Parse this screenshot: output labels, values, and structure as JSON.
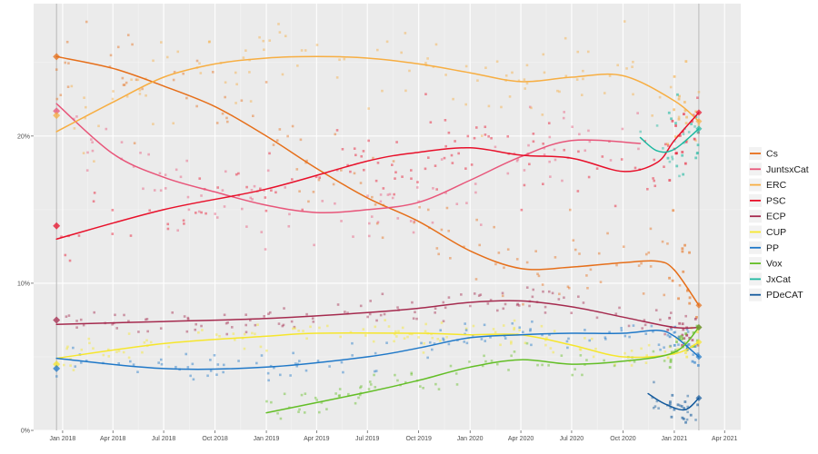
{
  "chart_data": {
    "type": "line",
    "title": "",
    "xlabel": "",
    "ylabel": "",
    "ylim": [
      0,
      29
    ],
    "xlim": [
      "2017-11-10",
      "2021-04-30"
    ],
    "grid": true,
    "legend_position": "right",
    "y_ticks": [
      {
        "value": 0,
        "label": "0%"
      },
      {
        "value": 10,
        "label": "10%"
      },
      {
        "value": 20,
        "label": "20%"
      }
    ],
    "x_ticks": [
      {
        "date": "2018-01-01",
        "label": "Jan 2018"
      },
      {
        "date": "2018-04-01",
        "label": "Apr 2018"
      },
      {
        "date": "2018-07-01",
        "label": "Jul 2018"
      },
      {
        "date": "2018-10-01",
        "label": "Oct 2018"
      },
      {
        "date": "2019-01-01",
        "label": "Jan 2019"
      },
      {
        "date": "2019-04-01",
        "label": "Apr 2019"
      },
      {
        "date": "2019-07-01",
        "label": "Jul 2019"
      },
      {
        "date": "2019-10-01",
        "label": "Oct 2019"
      },
      {
        "date": "2020-01-01",
        "label": "Jan 2020"
      },
      {
        "date": "2020-04-01",
        "label": "Apr 2020"
      },
      {
        "date": "2020-07-01",
        "label": "Jul 2020"
      },
      {
        "date": "2020-10-01",
        "label": "Oct 2020"
      },
      {
        "date": "2021-01-01",
        "label": "Jan 2021"
      },
      {
        "date": "2021-04-01",
        "label": "Apr 2021"
      }
    ],
    "election_dates": [
      "2017-12-21",
      "2021-02-14"
    ],
    "series": [
      {
        "name": "Cs",
        "color": "#e66f1a",
        "points": [
          [
            "2017-12-21",
            25.4
          ],
          [
            "2018-04-01",
            24.6
          ],
          [
            "2018-07-01",
            23.4
          ],
          [
            "2018-10-01",
            22.0
          ],
          [
            "2019-01-01",
            20.0
          ],
          [
            "2019-04-01",
            17.8
          ],
          [
            "2019-07-01",
            15.8
          ],
          [
            "2019-10-01",
            14.2
          ],
          [
            "2020-01-01",
            12.2
          ],
          [
            "2020-04-01",
            11.0
          ],
          [
            "2020-07-01",
            11.1
          ],
          [
            "2020-10-01",
            11.4
          ],
          [
            "2020-12-01",
            11.5
          ],
          [
            "2021-01-01",
            10.9
          ],
          [
            "2021-02-14",
            8.5
          ]
        ],
        "election_result": 25.4
      },
      {
        "name": "JuntsxCat",
        "color": "#e8567a",
        "points": [
          [
            "2017-12-21",
            22.2
          ],
          [
            "2018-04-01",
            18.8
          ],
          [
            "2018-07-01",
            17.2
          ],
          [
            "2018-10-01",
            16.2
          ],
          [
            "2019-01-01",
            15.3
          ],
          [
            "2019-04-01",
            14.8
          ],
          [
            "2019-07-01",
            15.0
          ],
          [
            "2019-10-01",
            15.5
          ],
          [
            "2020-01-01",
            17.0
          ],
          [
            "2020-04-01",
            18.6
          ],
          [
            "2020-07-01",
            19.7
          ],
          [
            "2020-11-01",
            19.5
          ]
        ],
        "election_result": 21.7
      },
      {
        "name": "ERC",
        "color": "#f7ae42",
        "points": [
          [
            "2017-12-21",
            20.3
          ],
          [
            "2018-04-01",
            22.3
          ],
          [
            "2018-07-01",
            24.0
          ],
          [
            "2018-10-01",
            24.9
          ],
          [
            "2019-01-01",
            25.3
          ],
          [
            "2019-04-01",
            25.4
          ],
          [
            "2019-07-01",
            25.3
          ],
          [
            "2019-10-01",
            24.9
          ],
          [
            "2020-01-01",
            24.3
          ],
          [
            "2020-04-01",
            23.7
          ],
          [
            "2020-07-01",
            24.0
          ],
          [
            "2020-10-01",
            24.1
          ],
          [
            "2021-01-01",
            22.4
          ],
          [
            "2021-02-14",
            21.0
          ]
        ],
        "election_result": 21.4
      },
      {
        "name": "PSC",
        "color": "#e8102a",
        "points": [
          [
            "2017-12-21",
            13.0
          ],
          [
            "2018-07-01",
            15.0
          ],
          [
            "2019-01-01",
            16.4
          ],
          [
            "2019-07-01",
            18.3
          ],
          [
            "2019-10-01",
            18.9
          ],
          [
            "2020-01-01",
            19.2
          ],
          [
            "2020-04-01",
            18.7
          ],
          [
            "2020-07-01",
            18.5
          ],
          [
            "2020-10-01",
            17.6
          ],
          [
            "2020-12-01",
            18.2
          ],
          [
            "2021-01-01",
            19.7
          ],
          [
            "2021-02-14",
            21.6
          ]
        ],
        "election_result": 13.9
      },
      {
        "name": "ECP",
        "color": "#a52a4e",
        "points": [
          [
            "2017-12-21",
            7.2
          ],
          [
            "2018-07-01",
            7.4
          ],
          [
            "2019-01-01",
            7.6
          ],
          [
            "2019-07-01",
            8.0
          ],
          [
            "2019-10-01",
            8.3
          ],
          [
            "2020-01-01",
            8.7
          ],
          [
            "2020-04-01",
            8.8
          ],
          [
            "2020-07-01",
            8.4
          ],
          [
            "2020-10-01",
            7.7
          ],
          [
            "2021-01-01",
            7.0
          ],
          [
            "2021-02-14",
            7.0
          ]
        ],
        "election_result": 7.5
      },
      {
        "name": "CUP",
        "color": "#f6e62b",
        "points": [
          [
            "2017-12-21",
            4.9
          ],
          [
            "2018-07-01",
            5.9
          ],
          [
            "2019-01-01",
            6.4
          ],
          [
            "2019-04-01",
            6.6
          ],
          [
            "2019-10-01",
            6.6
          ],
          [
            "2020-01-01",
            6.5
          ],
          [
            "2020-04-01",
            6.5
          ],
          [
            "2020-07-01",
            5.8
          ],
          [
            "2020-10-01",
            5.0
          ],
          [
            "2021-01-01",
            5.2
          ],
          [
            "2021-02-14",
            6.0
          ]
        ],
        "election_result": 4.5
      },
      {
        "name": "PP",
        "color": "#1f78c8",
        "points": [
          [
            "2017-12-21",
            4.9
          ],
          [
            "2018-07-01",
            4.2
          ],
          [
            "2019-01-01",
            4.3
          ],
          [
            "2019-07-01",
            5.0
          ],
          [
            "2019-10-01",
            5.6
          ],
          [
            "2020-01-01",
            6.3
          ],
          [
            "2020-04-01",
            6.5
          ],
          [
            "2020-07-01",
            6.6
          ],
          [
            "2020-10-01",
            6.6
          ],
          [
            "2020-12-01",
            6.8
          ],
          [
            "2021-01-01",
            6.4
          ],
          [
            "2021-02-14",
            5.0
          ]
        ],
        "election_result": 4.2
      },
      {
        "name": "Vox",
        "color": "#63be26",
        "points": [
          [
            "2019-01-01",
            1.2
          ],
          [
            "2019-07-01",
            2.6
          ],
          [
            "2019-10-01",
            3.4
          ],
          [
            "2020-01-01",
            4.3
          ],
          [
            "2020-04-01",
            4.8
          ],
          [
            "2020-07-01",
            4.5
          ],
          [
            "2020-10-01",
            4.7
          ],
          [
            "2021-01-01",
            5.3
          ],
          [
            "2021-02-14",
            7.0
          ]
        ]
      },
      {
        "name": "JxCat",
        "color": "#1cb8a0",
        "points": [
          [
            "2020-11-01",
            19.9
          ],
          [
            "2020-12-01",
            19.0
          ],
          [
            "2021-01-01",
            19.1
          ],
          [
            "2021-02-14",
            20.5
          ]
        ]
      },
      {
        "name": "PDeCAT",
        "color": "#145a9c",
        "points": [
          [
            "2020-11-15",
            2.5
          ],
          [
            "2020-12-15",
            1.8
          ],
          [
            "2021-01-20",
            1.4
          ],
          [
            "2021-02-14",
            2.2
          ]
        ]
      }
    ]
  }
}
